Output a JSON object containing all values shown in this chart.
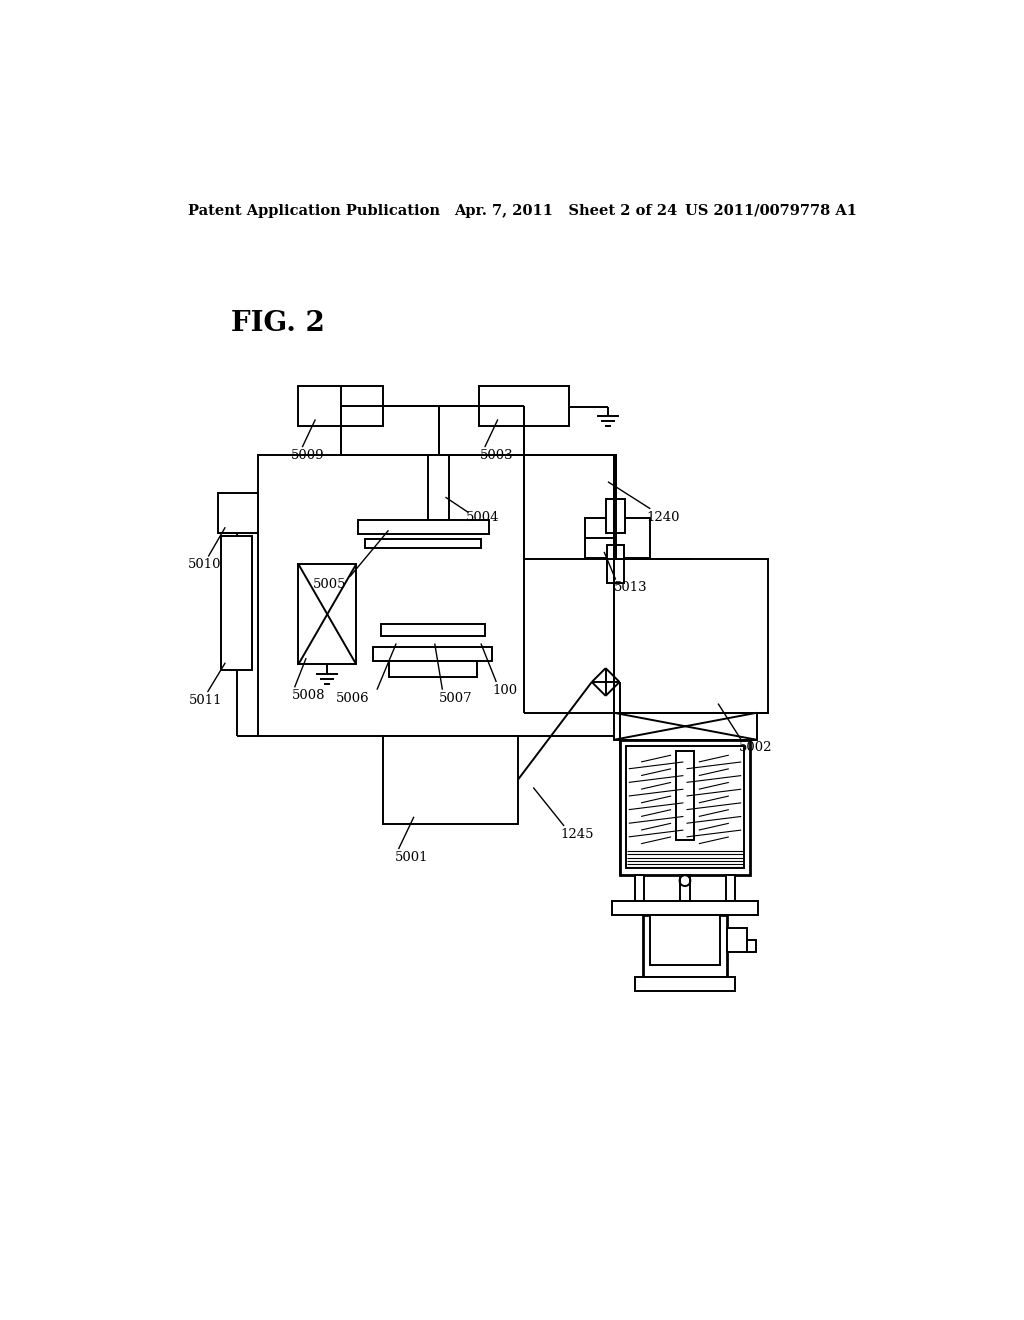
{
  "bg_color": "#ffffff",
  "header_left": "Patent Application Publication",
  "header_mid": "Apr. 7, 2011   Sheet 2 of 24",
  "header_right": "US 2011/0079778 A1",
  "fig_label": "FIG. 2",
  "lw_main": 1.4,
  "lw_thin": 1.0,
  "lw_thick": 2.0,
  "fs_header": 10.5,
  "fs_label": 9.5,
  "fs_fig": 20
}
